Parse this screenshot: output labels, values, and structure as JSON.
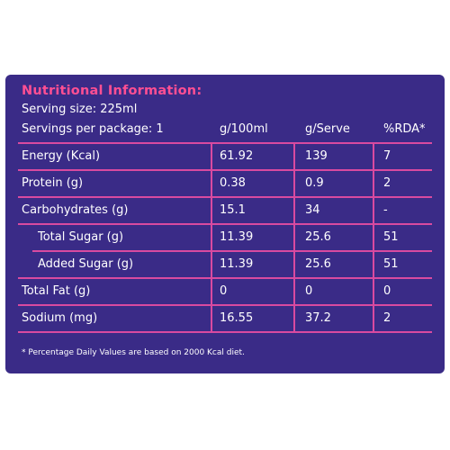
{
  "title": "Nutritional Information:",
  "serving_size": "Serving size: 225ml",
  "headers": {
    "servings_per_package": "Servings per package: 1",
    "col1": "g/100ml",
    "col2": "g/Serve",
    "col3": "%RDA*"
  },
  "rows": [
    {
      "name": "Energy (Kcal)",
      "per100": "61.92",
      "serve": "139",
      "rda": "7"
    },
    {
      "name": "Protein (g)",
      "per100": "0.38",
      "serve": "0.9",
      "rda": "2"
    },
    {
      "name": "Carbohydrates (g)",
      "per100": "15.1",
      "serve": "34",
      "rda": "-"
    },
    {
      "name": "Total Sugar (g)",
      "per100": "11.39",
      "serve": "25.6",
      "rda": "51"
    },
    {
      "name": "Added Sugar (g)",
      "per100": "11.39",
      "serve": "25.6",
      "rda": "51"
    },
    {
      "name": "Total Fat (g)",
      "per100": "0",
      "serve": "0",
      "rda": "0"
    },
    {
      "name": "Sodium (mg)",
      "per100": "16.55",
      "serve": "37.2",
      "rda": "2"
    }
  ],
  "footnote": "* Percentage Daily Values are based on 2000 Kcal diet.",
  "colors": {
    "panel": "#3a2b87",
    "title": "#ff4f93",
    "divider": "#d94aa0",
    "text": "#ffffff"
  }
}
